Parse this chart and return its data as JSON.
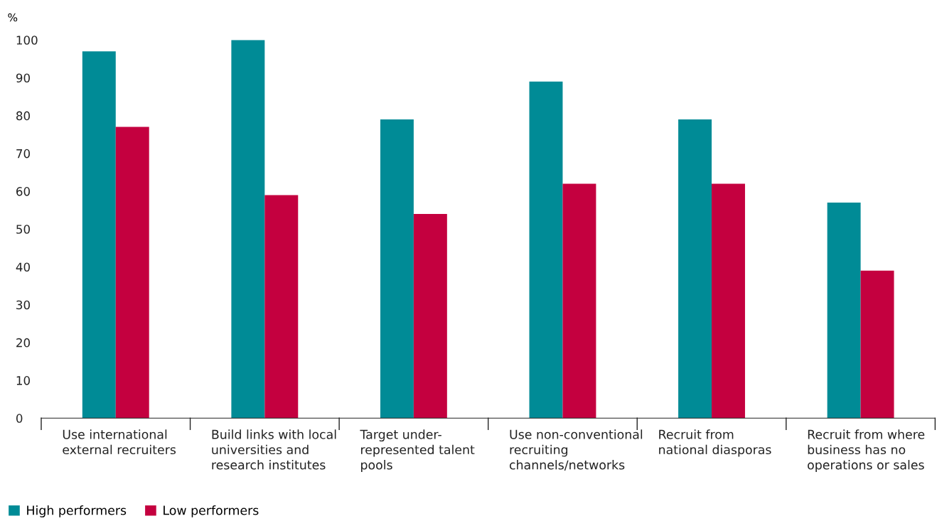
{
  "chart_data": {
    "type": "bar",
    "ylabel": "%",
    "categories": [
      "Use international\nexternal recruiters",
      "Build links with local\nuniversities and\nresearch institutes",
      "Target under-\nrepresented talent\npools",
      "Use non-conventional\nrecruiting\nchannels/networks",
      "Recruit from\nnational diasporas",
      "Recruit from where\nbusiness has no\noperations or sales"
    ],
    "series": [
      {
        "name": "High performers",
        "color": "#008b96",
        "values": [
          97,
          100,
          79,
          89,
          79,
          57
        ]
      },
      {
        "name": "Low performers",
        "color": "#c4003f",
        "values": [
          77,
          59,
          54,
          62,
          62,
          39
        ]
      }
    ],
    "ylim": [
      0,
      100
    ],
    "yticks": [
      0,
      10,
      20,
      30,
      40,
      50,
      60,
      70,
      80,
      90,
      100
    ],
    "grid": false,
    "legend": "bottom left"
  }
}
